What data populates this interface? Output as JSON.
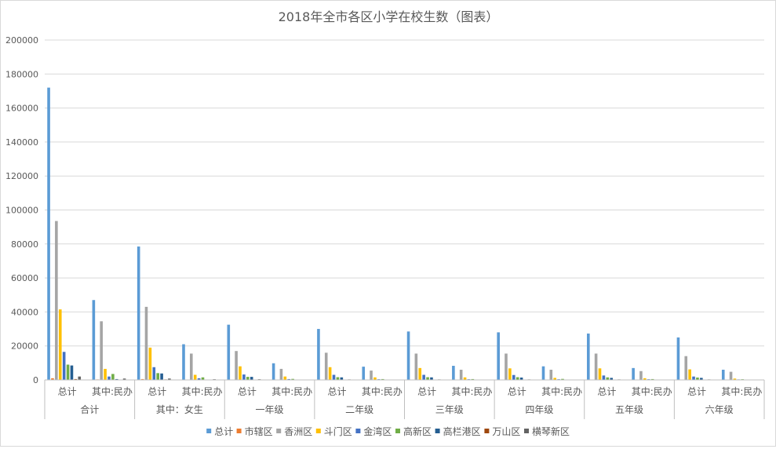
{
  "chart_data": {
    "type": "bar",
    "title": "2018年全市各区小学在校生数（图表）",
    "xlabel": "",
    "ylabel": "",
    "ylim": [
      0,
      200000
    ],
    "yticks": [
      0,
      20000,
      40000,
      60000,
      80000,
      100000,
      120000,
      140000,
      160000,
      180000,
      200000
    ],
    "grid": true,
    "legend_position": "bottom",
    "groups": [
      "合计",
      "其中：女生",
      "一年级",
      "二年级",
      "三年级",
      "四年级",
      "五年级",
      "六年级"
    ],
    "subcategories": [
      "总计",
      "其中:民办"
    ],
    "categories": [
      "合计 总计",
      "合计 其中:民办",
      "其中：女生 总计",
      "其中：女生 其中:民办",
      "一年级 总计",
      "一年级 其中:民办",
      "二年级 总计",
      "二年级 其中:民办",
      "三年级 总计",
      "三年级 其中:民办",
      "四年级 总计",
      "四年级 其中:民办",
      "五年级 总计",
      "五年级 其中:民办",
      "六年级 总计",
      "六年级 其中:民办"
    ],
    "series": [
      {
        "name": "总计",
        "color": "#5b9bd5",
        "values": [
          172000,
          47000,
          78500,
          21000,
          32500,
          9800,
          30000,
          7800,
          28500,
          8300,
          28000,
          8000,
          27300,
          7000,
          25000,
          6000
        ]
      },
      {
        "name": "市辖区",
        "color": "#ed7d31",
        "values": [
          1000,
          300,
          500,
          100,
          200,
          50,
          150,
          50,
          150,
          50,
          150,
          50,
          150,
          50,
          150,
          50
        ]
      },
      {
        "name": "香洲区",
        "color": "#a5a5a5",
        "values": [
          93500,
          34500,
          43000,
          15500,
          17000,
          6500,
          16000,
          5500,
          15500,
          6000,
          15500,
          6000,
          15500,
          5200,
          14000,
          4800
        ]
      },
      {
        "name": "斗门区",
        "color": "#ffc000",
        "values": [
          41500,
          6500,
          19000,
          3000,
          8000,
          2000,
          7500,
          1500,
          7000,
          1500,
          6800,
          1200,
          6800,
          1000,
          6200,
          800
        ]
      },
      {
        "name": "金湾区",
        "color": "#4472c4",
        "values": [
          16500,
          2000,
          7500,
          1000,
          3200,
          500,
          3000,
          400,
          3000,
          400,
          2900,
          400,
          2600,
          400,
          2000,
          300
        ]
      },
      {
        "name": "高新区",
        "color": "#70ad47",
        "values": [
          9000,
          3500,
          4000,
          1500,
          1800,
          600,
          1600,
          500,
          1600,
          500,
          1600,
          600,
          1500,
          500,
          1400,
          400
        ]
      },
      {
        "name": "高栏港区",
        "color": "#255e91",
        "values": [
          8500,
          500,
          3800,
          200,
          1800,
          100,
          1500,
          100,
          1500,
          100,
          1400,
          100,
          1200,
          100,
          1200,
          100
        ]
      },
      {
        "name": "万山区",
        "color": "#9e480e",
        "values": [
          500,
          0,
          300,
          0,
          100,
          0,
          100,
          0,
          100,
          0,
          100,
          0,
          100,
          0,
          100,
          0
        ]
      },
      {
        "name": "横琴新区",
        "color": "#636363",
        "values": [
          2000,
          800,
          800,
          400,
          400,
          200,
          300,
          200,
          300,
          200,
          300,
          200,
          300,
          200,
          300,
          200
        ]
      }
    ]
  }
}
